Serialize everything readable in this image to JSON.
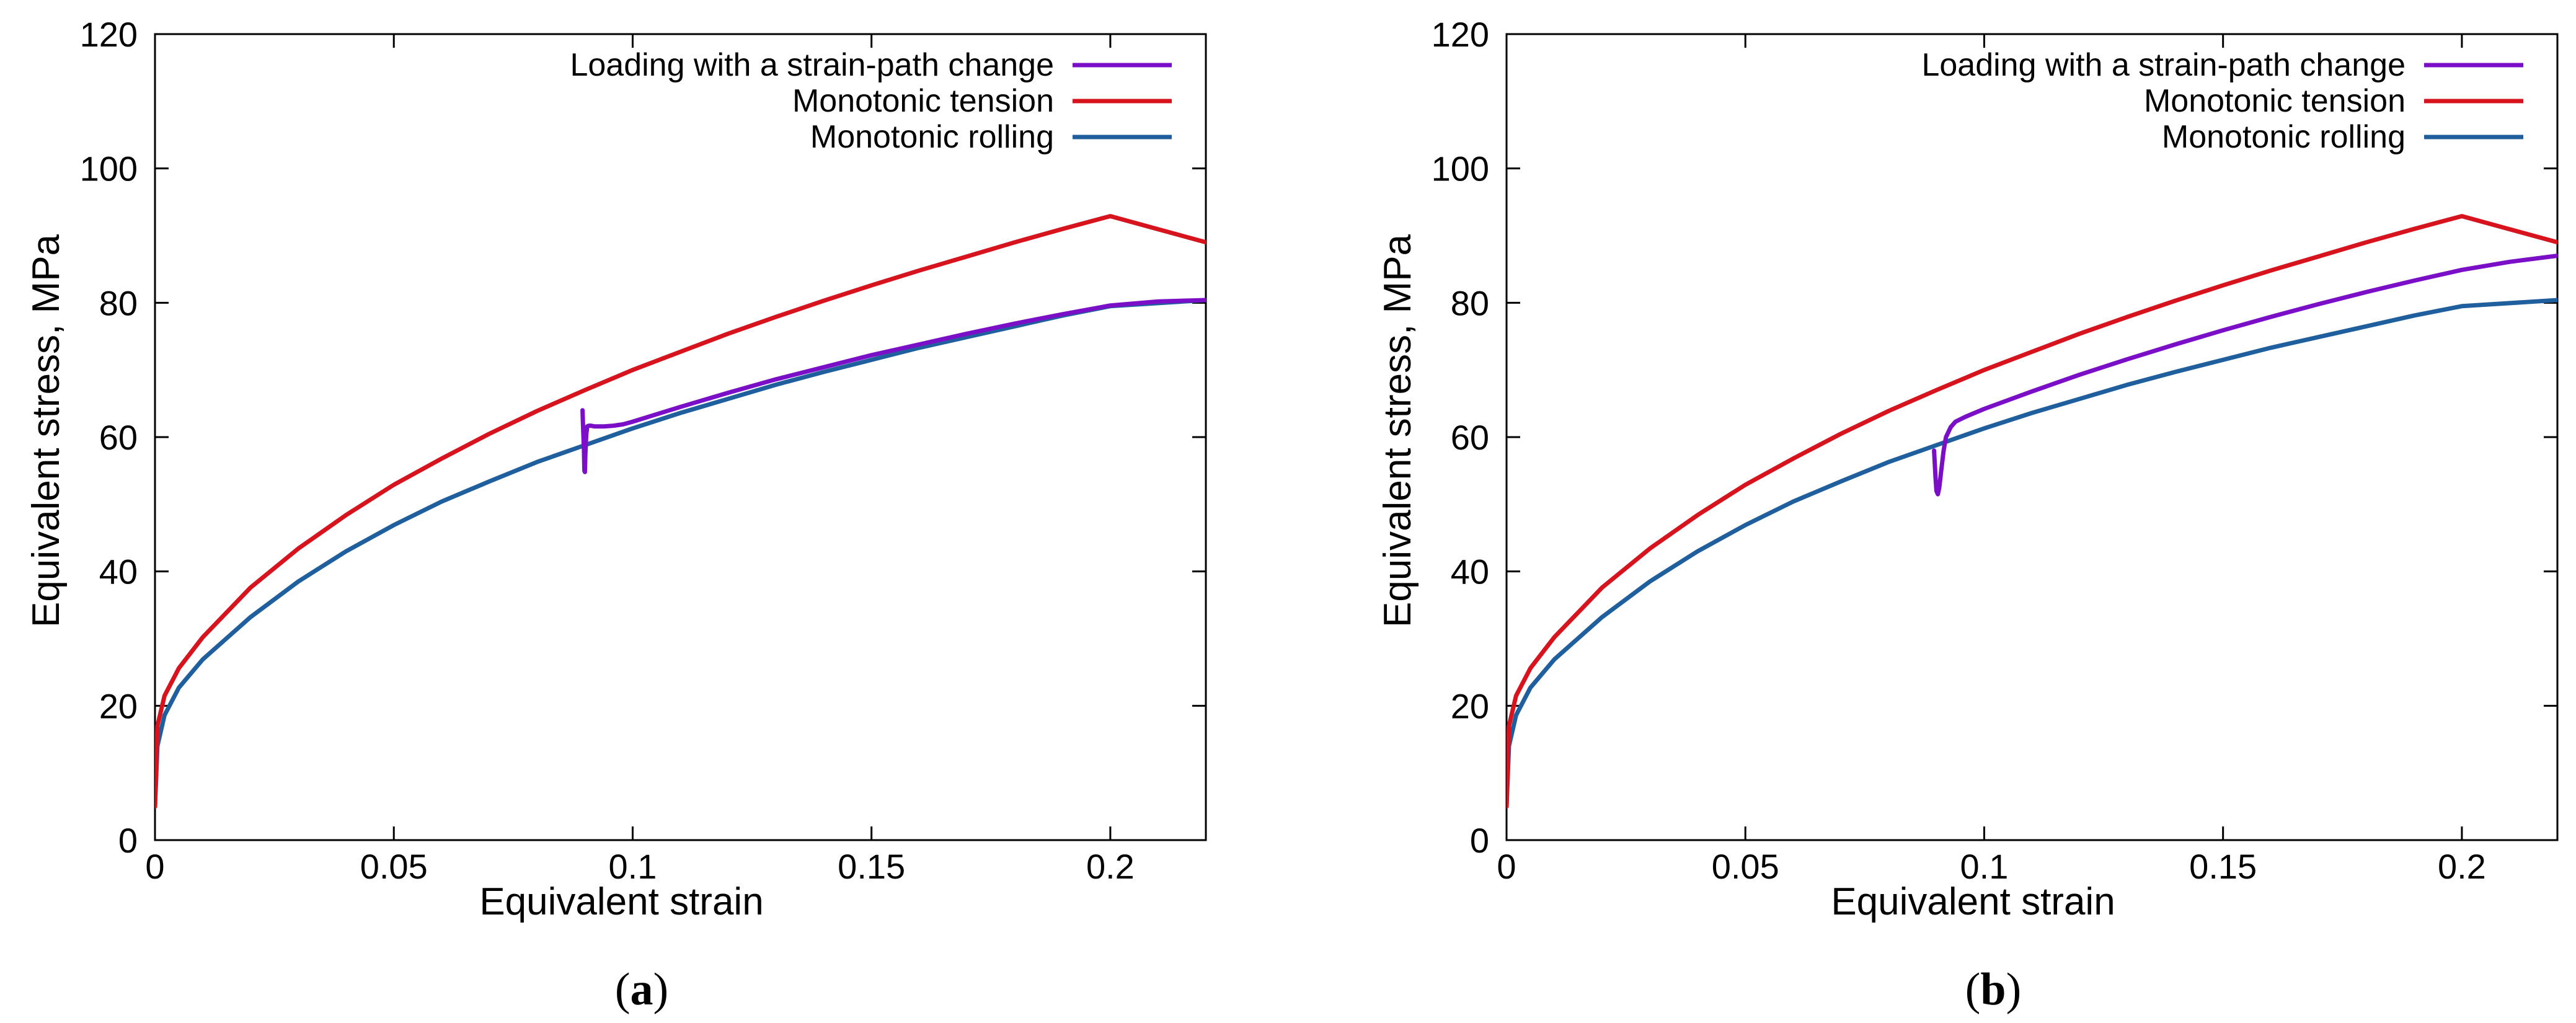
{
  "chart_data": [
    {
      "type": "line",
      "panel_label_parts": [
        "(",
        "a",
        ")"
      ],
      "xlabel": "Equivalent strain",
      "ylabel": "Equivalent stress, MPa",
      "xlim": [
        0,
        0.22
      ],
      "ylim": [
        0,
        120
      ],
      "x_ticks": [
        0,
        0.05,
        0.1,
        0.15,
        0.2
      ],
      "x_tick_labels": [
        "0",
        "0.05",
        "0.1",
        "0.15",
        "0.2"
      ],
      "y_ticks": [
        0,
        20,
        40,
        60,
        80,
        100,
        120
      ],
      "y_tick_labels": [
        "0",
        "20",
        "40",
        "60",
        "80",
        "100",
        "120"
      ],
      "grid": false,
      "legend_position": "top-right",
      "series": [
        {
          "name": "Loading with a strain-path change",
          "color": "#7B0FC8",
          "x": [
            0.0895,
            0.0896,
            0.0898,
            0.0899,
            0.09,
            0.0901,
            0.0903,
            0.0905,
            0.0908,
            0.0912,
            0.092,
            0.094,
            0.096,
            0.098,
            0.1,
            0.105,
            0.11,
            0.12,
            0.13,
            0.14,
            0.15,
            0.16,
            0.17,
            0.18,
            0.19,
            0.2,
            0.21,
            0.22
          ],
          "y": [
            64.0,
            62.0,
            58.0,
            55.0,
            54.8,
            57.5,
            60.5,
            61.6,
            61.7,
            61.7,
            61.6,
            61.6,
            61.7,
            61.9,
            62.3,
            63.4,
            64.5,
            66.6,
            68.6,
            70.4,
            72.2,
            73.8,
            75.4,
            76.9,
            78.3,
            79.6,
            80.2,
            80.4
          ]
        },
        {
          "name": "Monotonic tension",
          "color": "#D7141E",
          "x": [
            0,
            0.0005,
            0.002,
            0.005,
            0.01,
            0.02,
            0.03,
            0.04,
            0.05,
            0.06,
            0.07,
            0.08,
            0.09,
            0.1,
            0.11,
            0.12,
            0.13,
            0.14,
            0.15,
            0.16,
            0.17,
            0.18,
            0.19,
            0.2,
            0.21,
            0.22
          ],
          "y": [
            5,
            17,
            21.5,
            25.6,
            30.2,
            37.6,
            43.4,
            48.4,
            52.9,
            56.8,
            60.5,
            63.9,
            67.0,
            70.0,
            72.7,
            75.4,
            77.9,
            80.3,
            82.6,
            84.8,
            86.9,
            89.0,
            91.0,
            92.9,
            94.8,
            89.0
          ]
        },
        {
          "name": "Monotonic rolling",
          "color": "#1F5F9E",
          "x": [
            0,
            0.0005,
            0.002,
            0.005,
            0.01,
            0.02,
            0.03,
            0.04,
            0.05,
            0.06,
            0.07,
            0.08,
            0.09,
            0.1,
            0.11,
            0.12,
            0.13,
            0.14,
            0.15,
            0.16,
            0.17,
            0.18,
            0.19,
            0.2,
            0.21,
            0.22
          ],
          "y": [
            5,
            14,
            18.6,
            22.7,
            26.9,
            33.2,
            38.5,
            43.0,
            46.9,
            50.4,
            53.4,
            56.3,
            58.8,
            61.3,
            63.6,
            65.7,
            67.8,
            69.7,
            71.5,
            73.3,
            74.9,
            76.5,
            78.1,
            79.5,
            80.0,
            80.4
          ]
        }
      ]
    },
    {
      "type": "line",
      "panel_label_parts": [
        "(",
        "b",
        ")"
      ],
      "xlabel": "Equivalent strain",
      "ylabel": "Equivalent stress, MPa",
      "xlim": [
        0,
        0.22
      ],
      "ylim": [
        0,
        120
      ],
      "x_ticks": [
        0,
        0.05,
        0.1,
        0.15,
        0.2
      ],
      "x_tick_labels": [
        "0",
        "0.05",
        "0.1",
        "0.15",
        "0.2"
      ],
      "y_ticks": [
        0,
        20,
        40,
        60,
        80,
        100,
        120
      ],
      "y_tick_labels": [
        "0",
        "20",
        "40",
        "60",
        "80",
        "100",
        "120"
      ],
      "grid": false,
      "legend_position": "top-right",
      "series": [
        {
          "name": "Loading with a strain-path change",
          "color": "#7B0FC8",
          "x": [
            0.0895,
            0.0898,
            0.09,
            0.0903,
            0.0906,
            0.091,
            0.0915,
            0.092,
            0.093,
            0.094,
            0.096,
            0.1,
            0.11,
            0.12,
            0.13,
            0.14,
            0.15,
            0.16,
            0.17,
            0.18,
            0.19,
            0.2,
            0.21,
            0.22
          ],
          "y": [
            58.0,
            54.0,
            52.0,
            51.5,
            52.5,
            55.0,
            58.0,
            60.0,
            61.5,
            62.3,
            63.0,
            64.2,
            66.8,
            69.3,
            71.6,
            73.8,
            75.9,
            77.9,
            79.8,
            81.6,
            83.3,
            84.9,
            86.1,
            87.0
          ]
        },
        {
          "name": "Monotonic tension",
          "color": "#D7141E",
          "x": [
            0,
            0.0005,
            0.002,
            0.005,
            0.01,
            0.02,
            0.03,
            0.04,
            0.05,
            0.06,
            0.07,
            0.08,
            0.09,
            0.1,
            0.11,
            0.12,
            0.13,
            0.14,
            0.15,
            0.16,
            0.17,
            0.18,
            0.19,
            0.2,
            0.21,
            0.22
          ],
          "y": [
            5,
            17,
            21.5,
            25.6,
            30.2,
            37.6,
            43.4,
            48.4,
            52.9,
            56.8,
            60.5,
            63.9,
            67.0,
            70.0,
            72.7,
            75.4,
            77.9,
            80.3,
            82.6,
            84.8,
            86.9,
            89.0,
            91.0,
            92.9,
            94.8,
            89.0
          ]
        },
        {
          "name": "Monotonic rolling",
          "color": "#1F5F9E",
          "x": [
            0,
            0.0005,
            0.002,
            0.005,
            0.01,
            0.02,
            0.03,
            0.04,
            0.05,
            0.06,
            0.07,
            0.08,
            0.09,
            0.1,
            0.11,
            0.12,
            0.13,
            0.14,
            0.15,
            0.16,
            0.17,
            0.18,
            0.19,
            0.2,
            0.21,
            0.22
          ],
          "y": [
            5,
            14,
            18.6,
            22.7,
            26.9,
            33.2,
            38.5,
            43.0,
            46.9,
            50.4,
            53.4,
            56.3,
            58.8,
            61.3,
            63.6,
            65.7,
            67.8,
            69.7,
            71.5,
            73.3,
            74.9,
            76.5,
            78.1,
            79.5,
            80.0,
            80.4
          ]
        }
      ]
    }
  ]
}
